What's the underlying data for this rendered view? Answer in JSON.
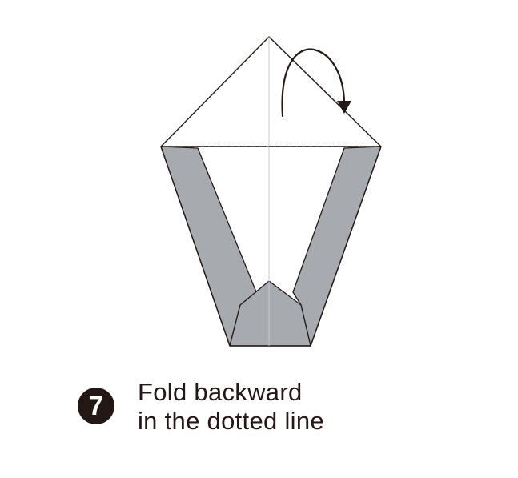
{
  "step": {
    "number": "7",
    "line1": "Fold backward",
    "line2": "in the dotted line"
  },
  "colors": {
    "paper_back": "#ffffff",
    "paper_front": "#a7abaf",
    "outline": "#231815",
    "center_crease": "#c9cacb"
  },
  "icons": {
    "fold_arrow": "curved-arrow-clockwise"
  }
}
